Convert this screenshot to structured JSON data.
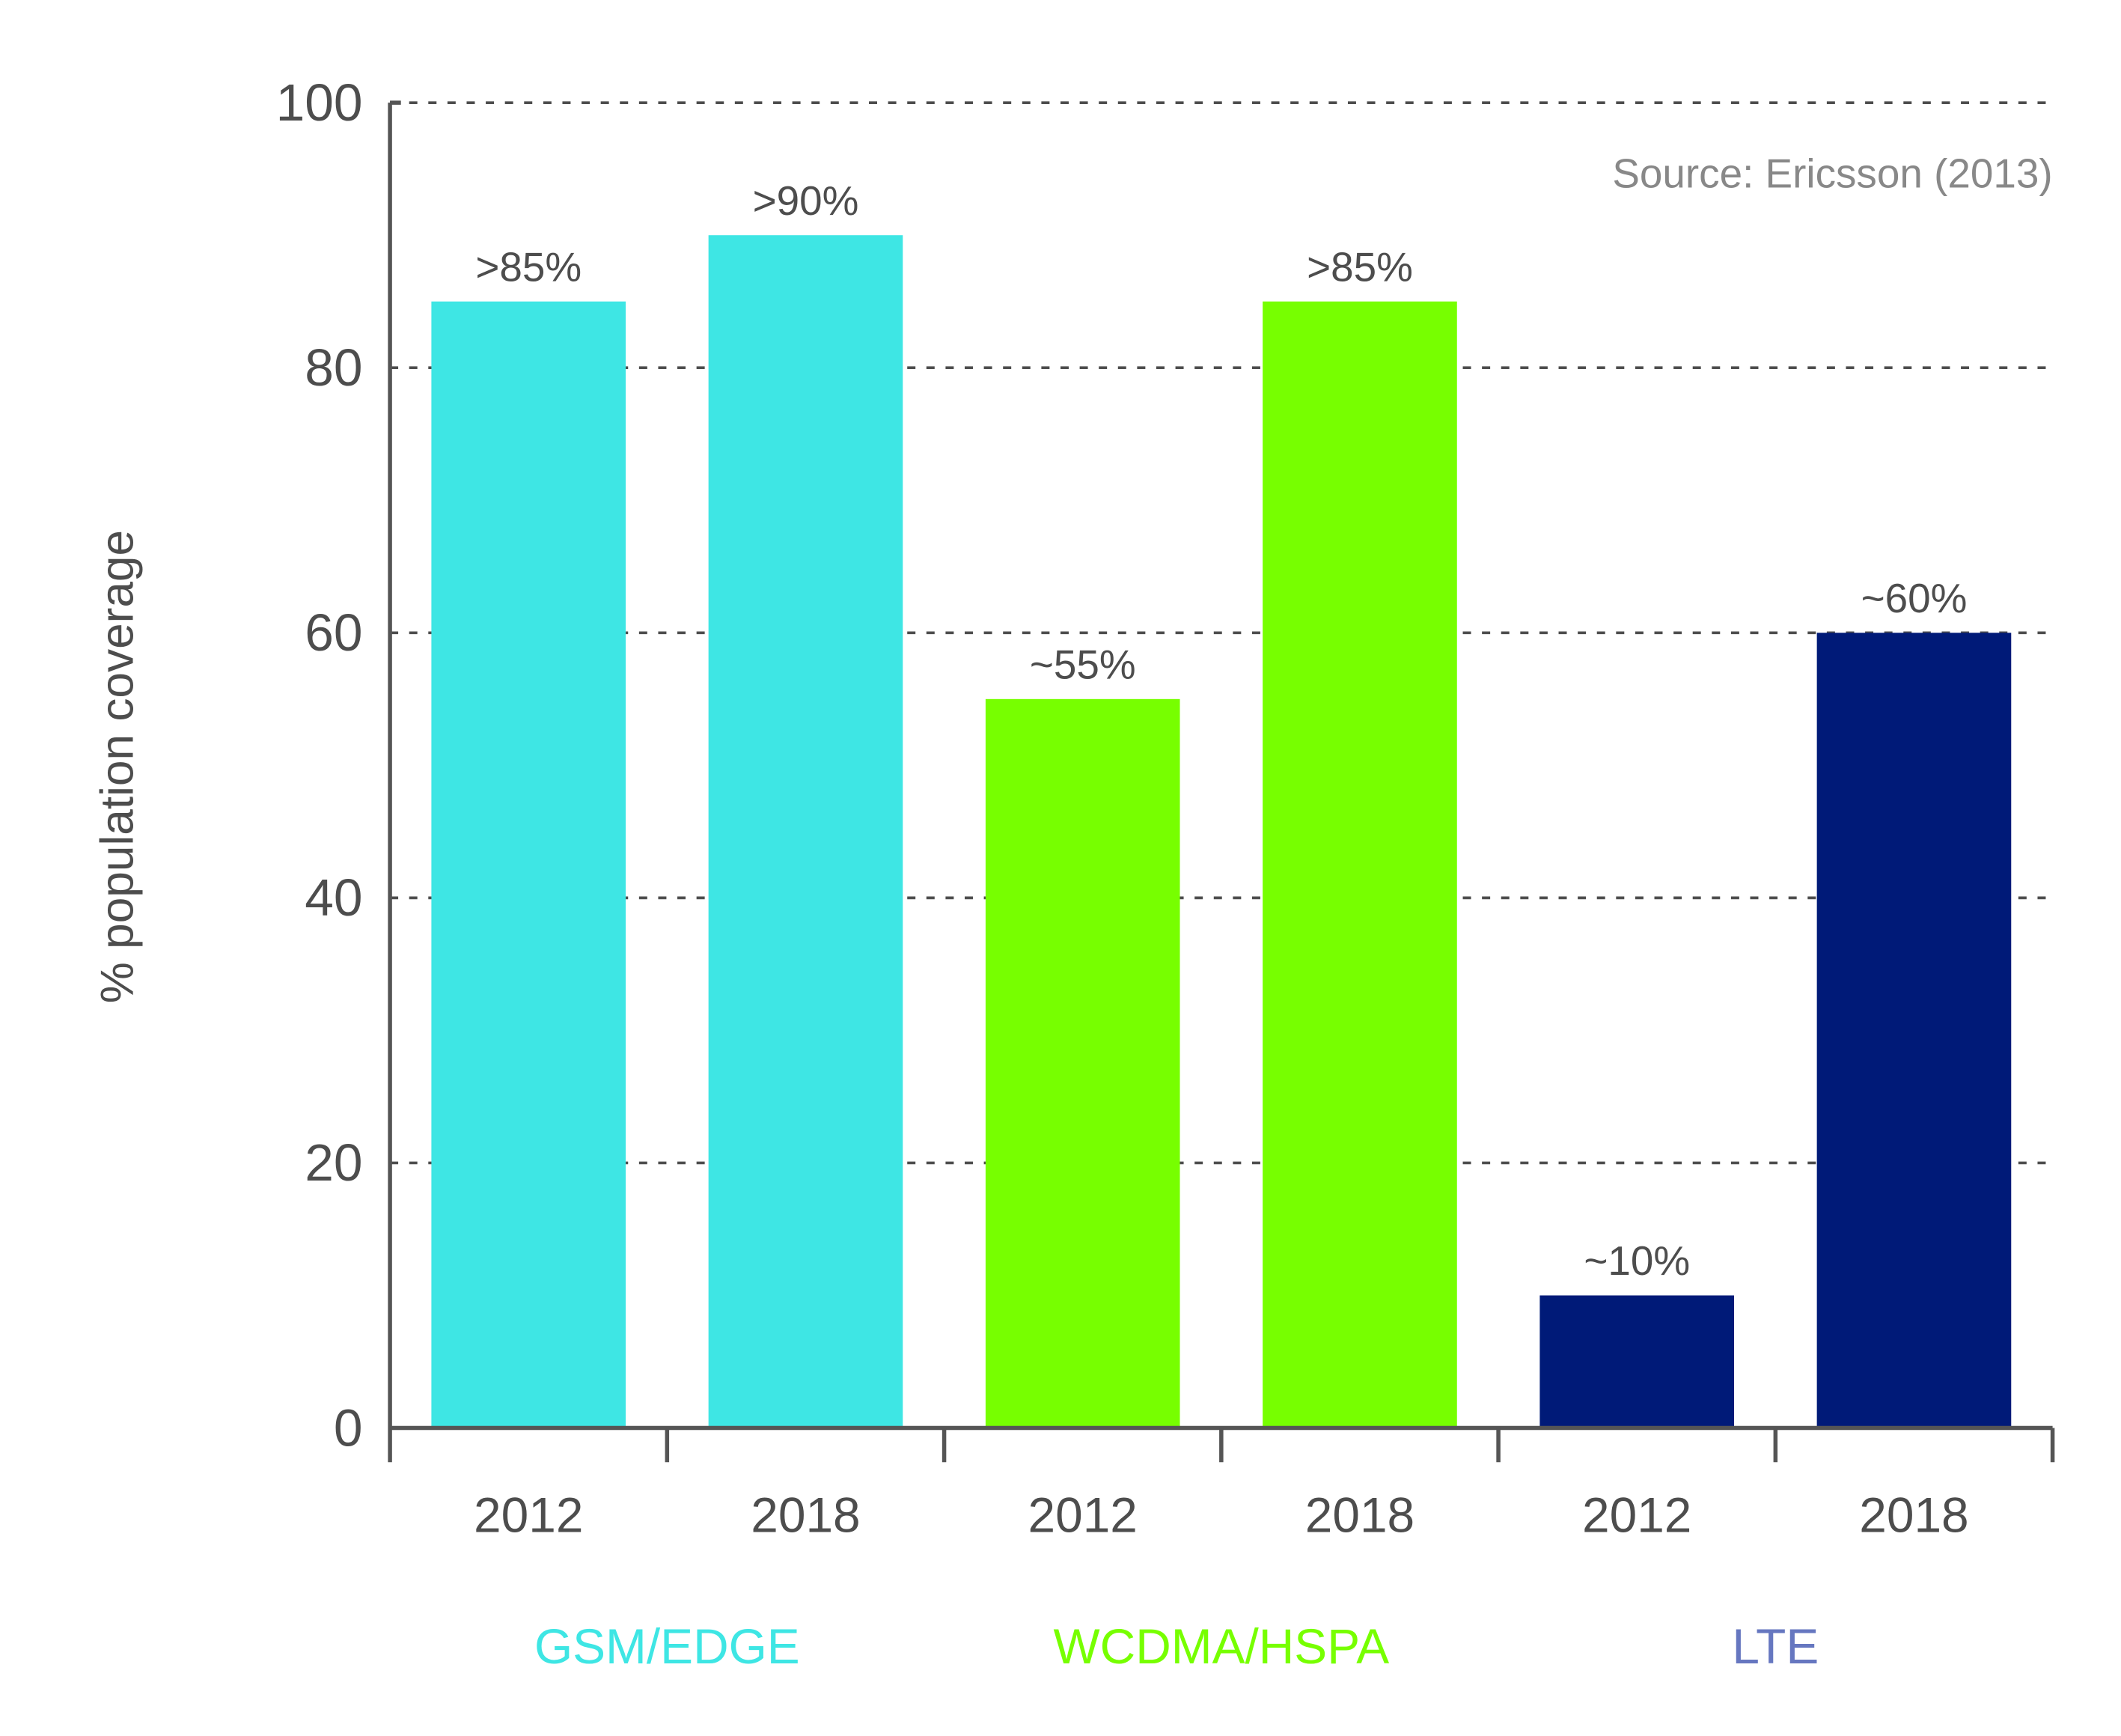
{
  "chart_data": {
    "type": "bar",
    "title": "",
    "xlabel": "",
    "ylabel": "% population coverage",
    "ylim": [
      0,
      100
    ],
    "yticks": [
      0,
      20,
      40,
      60,
      80,
      100
    ],
    "grid": true,
    "annotation": "Source: Ericsson (2013)",
    "annotation_placement": "top-right",
    "groups": [
      {
        "name": "GSM/EDGE",
        "color": "#3ee6e4",
        "label_color": "#3ee6e4",
        "bars": [
          {
            "category": "2012",
            "value": 85,
            "label": ">85%"
          },
          {
            "category": "2018",
            "value": 90,
            "label": ">90%"
          }
        ]
      },
      {
        "name": "WCDMA/HSPA",
        "color": "#77ff00",
        "label_color": "#77ff00",
        "bars": [
          {
            "category": "2012",
            "value": 55,
            "label": "~55%"
          },
          {
            "category": "2018",
            "value": 85,
            "label": ">85%"
          }
        ]
      },
      {
        "name": "LTE",
        "color": "#001a78",
        "label_color": "#6677c0",
        "bars": [
          {
            "category": "2012",
            "value": 10,
            "label": "~10%"
          },
          {
            "category": "2018",
            "value": 60,
            "label": "~60%"
          }
        ]
      }
    ]
  }
}
